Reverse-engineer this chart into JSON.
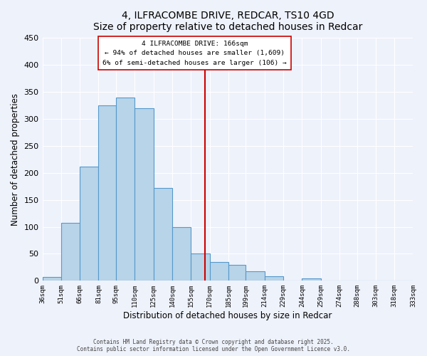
{
  "title": "4, ILFRACOMBE DRIVE, REDCAR, TS10 4GD",
  "subtitle": "Size of property relative to detached houses in Redcar",
  "xlabel": "Distribution of detached houses by size in Redcar",
  "ylabel": "Number of detached properties",
  "bar_color": "#b8d4e8",
  "bar_edge_color": "#5599cc",
  "bin_edges": [
    36,
    51,
    66,
    81,
    95,
    110,
    125,
    140,
    155,
    170,
    185,
    199,
    214,
    229,
    244,
    259,
    274,
    288,
    303,
    318,
    333
  ],
  "bin_labels": [
    "36sqm",
    "51sqm",
    "66sqm",
    "81sqm",
    "95sqm",
    "110sqm",
    "125sqm",
    "140sqm",
    "155sqm",
    "170sqm",
    "185sqm",
    "199sqm",
    "214sqm",
    "229sqm",
    "244sqm",
    "259sqm",
    "274sqm",
    "288sqm",
    "303sqm",
    "318sqm",
    "333sqm"
  ],
  "counts": [
    7,
    107,
    212,
    325,
    340,
    320,
    172,
    99,
    50,
    35,
    29,
    17,
    8,
    0,
    4,
    0,
    0,
    0,
    0,
    0
  ],
  "ylim": [
    0,
    450
  ],
  "yticks": [
    0,
    50,
    100,
    150,
    200,
    250,
    300,
    350,
    400,
    450
  ],
  "property_line_x": 166,
  "vline_color": "#cc0000",
  "annotation_title": "4 ILFRACOMBE DRIVE: 166sqm",
  "annotation_line1": "← 94% of detached houses are smaller (1,609)",
  "annotation_line2": "6% of semi-detached houses are larger (106) →",
  "annotation_box_color": "#ffffff",
  "annotation_box_edge": "#cc0000",
  "background_color": "#eef2fb",
  "grid_color": "#ffffff",
  "footer_line1": "Contains HM Land Registry data © Crown copyright and database right 2025.",
  "footer_line2": "Contains public sector information licensed under the Open Government Licence v3.0."
}
